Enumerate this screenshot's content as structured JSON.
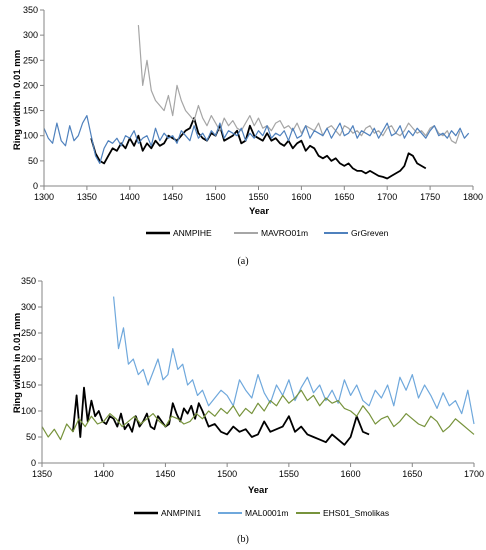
{
  "chart_data": [
    {
      "type": "line",
      "caption": "(a)",
      "xlabel": "Year",
      "ylabel": "Ring width in 0.01 mm",
      "xlim": [
        1300,
        1800
      ],
      "ylim": [
        0,
        350
      ],
      "x_ticks": [
        "1300",
        "1350",
        "1400",
        "1450",
        "1500",
        "1550",
        "1600",
        "1650",
        "1700",
        "1750",
        "1800"
      ],
      "y_ticks": [
        "0",
        "50",
        "100",
        "150",
        "200",
        "250",
        "300",
        "350"
      ],
      "grid": false,
      "legend": "bottom",
      "series": [
        {
          "name": "ANMPIHE",
          "color": "#000000",
          "x": [
            1355,
            1360,
            1365,
            1370,
            1375,
            1380,
            1385,
            1390,
            1395,
            1400,
            1405,
            1410,
            1415,
            1420,
            1425,
            1430,
            1435,
            1440,
            1445,
            1450,
            1455,
            1460,
            1465,
            1470,
            1475,
            1480,
            1485,
            1490,
            1495,
            1500,
            1505,
            1510,
            1515,
            1520,
            1525,
            1530,
            1535,
            1540,
            1545,
            1550,
            1555,
            1560,
            1565,
            1570,
            1575,
            1580,
            1585,
            1590,
            1595,
            1600,
            1605,
            1610,
            1615,
            1620,
            1625,
            1630,
            1635,
            1640,
            1645,
            1650,
            1655,
            1660,
            1665,
            1670,
            1675,
            1680,
            1685,
            1690,
            1695,
            1700,
            1705,
            1710,
            1715,
            1720,
            1725,
            1730,
            1735,
            1740,
            1745
          ],
          "y": [
            95,
            65,
            50,
            45,
            60,
            75,
            70,
            85,
            75,
            95,
            80,
            100,
            70,
            85,
            75,
            90,
            80,
            85,
            100,
            95,
            90,
            100,
            110,
            115,
            135,
            105,
            95,
            90,
            105,
            100,
            120,
            90,
            95,
            100,
            110,
            85,
            90,
            120,
            100,
            95,
            90,
            105,
            90,
            95,
            85,
            80,
            90,
            75,
            85,
            90,
            70,
            80,
            75,
            60,
            55,
            60,
            50,
            55,
            45,
            40,
            45,
            35,
            30,
            30,
            25,
            30,
            25,
            20,
            18,
            15,
            20,
            25,
            30,
            40,
            65,
            60,
            45,
            40,
            35
          ]
        },
        {
          "name": "MAVRO01m",
          "color": "#a6a6a6",
          "x": [
            1410,
            1415,
            1420,
            1425,
            1430,
            1435,
            1440,
            1445,
            1450,
            1455,
            1460,
            1465,
            1470,
            1475,
            1480,
            1485,
            1490,
            1495,
            1500,
            1505,
            1510,
            1515,
            1520,
            1525,
            1530,
            1535,
            1540,
            1545,
            1550,
            1555,
            1560,
            1565,
            1570,
            1575,
            1580,
            1585,
            1590,
            1595,
            1600,
            1605,
            1610,
            1615,
            1620,
            1625,
            1630,
            1635,
            1640,
            1645,
            1650,
            1655,
            1660,
            1665,
            1670,
            1675,
            1680,
            1685,
            1690,
            1695,
            1700,
            1705,
            1710,
            1715,
            1720,
            1725,
            1730,
            1735,
            1740,
            1745,
            1750,
            1755,
            1760,
            1765,
            1770,
            1775,
            1780,
            1785
          ],
          "y": [
            320,
            200,
            250,
            190,
            170,
            160,
            150,
            180,
            140,
            200,
            170,
            150,
            140,
            130,
            160,
            135,
            120,
            140,
            125,
            110,
            135,
            120,
            130,
            115,
            110,
            125,
            140,
            120,
            135,
            115,
            120,
            110,
            125,
            130,
            115,
            120,
            110,
            125,
            105,
            120,
            115,
            110,
            125,
            100,
            115,
            120,
            110,
            100,
            120,
            115,
            105,
            110,
            100,
            115,
            120,
            105,
            110,
            100,
            115,
            120,
            105,
            100,
            110,
            125,
            115,
            105,
            110,
            100,
            115,
            120,
            105,
            100,
            110,
            90,
            85,
            110
          ]
        },
        {
          "name": "GrGreven",
          "color": "#4f81bd",
          "x": [
            1300,
            1305,
            1310,
            1315,
            1320,
            1325,
            1330,
            1335,
            1340,
            1345,
            1350,
            1355,
            1360,
            1365,
            1370,
            1375,
            1380,
            1385,
            1390,
            1395,
            1400,
            1405,
            1410,
            1415,
            1420,
            1425,
            1430,
            1435,
            1440,
            1445,
            1450,
            1455,
            1460,
            1465,
            1470,
            1475,
            1480,
            1485,
            1490,
            1495,
            1500,
            1505,
            1510,
            1515,
            1520,
            1525,
            1530,
            1535,
            1540,
            1545,
            1550,
            1555,
            1560,
            1565,
            1570,
            1575,
            1580,
            1585,
            1590,
            1595,
            1600,
            1605,
            1610,
            1615,
            1620,
            1625,
            1630,
            1635,
            1640,
            1645,
            1650,
            1655,
            1660,
            1665,
            1670,
            1675,
            1680,
            1685,
            1690,
            1695,
            1700,
            1705,
            1710,
            1715,
            1720,
            1725,
            1730,
            1735,
            1740,
            1745,
            1750,
            1755,
            1760,
            1765,
            1770,
            1775,
            1780,
            1785,
            1790,
            1795
          ],
          "y": [
            115,
            95,
            85,
            125,
            90,
            80,
            120,
            90,
            100,
            125,
            140,
            100,
            60,
            45,
            75,
            90,
            85,
            95,
            80,
            100,
            95,
            110,
            85,
            95,
            100,
            80,
            115,
            90,
            105,
            95,
            100,
            85,
            110,
            100,
            90,
            120,
            95,
            105,
            90,
            110,
            100,
            125,
            95,
            110,
            105,
            100,
            115,
            90,
            105,
            95,
            110,
            100,
            120,
            95,
            105,
            100,
            110,
            90,
            115,
            95,
            100,
            120,
            95,
            110,
            105,
            100,
            115,
            95,
            110,
            125,
            100,
            105,
            120,
            95,
            110,
            105,
            100,
            115,
            95,
            110,
            125,
            100,
            105,
            120,
            95,
            110,
            100,
            115,
            105,
            95,
            110,
            120,
            100,
            105,
            95,
            110,
            100,
            115,
            95,
            105
          ]
        }
      ]
    },
    {
      "type": "line",
      "caption": "(b)",
      "xlabel": "Year",
      "ylabel": "Ring width in 0.01 mm",
      "xlim": [
        1350,
        1700
      ],
      "ylim": [
        0,
        350
      ],
      "x_ticks": [
        "1350",
        "1400",
        "1450",
        "1500",
        "1550",
        "1600",
        "1650",
        "1700"
      ],
      "y_ticks": [
        "0",
        "50",
        "100",
        "150",
        "200",
        "250",
        "300",
        "350"
      ],
      "grid": false,
      "legend": "bottom",
      "series": [
        {
          "name": "ANMPINI1",
          "color": "#000000",
          "x": [
            1375,
            1378,
            1381,
            1384,
            1387,
            1390,
            1393,
            1396,
            1399,
            1402,
            1405,
            1408,
            1411,
            1414,
            1417,
            1420,
            1423,
            1426,
            1429,
            1432,
            1435,
            1438,
            1441,
            1444,
            1447,
            1450,
            1453,
            1456,
            1459,
            1462,
            1465,
            1468,
            1471,
            1474,
            1477,
            1480,
            1485,
            1490,
            1495,
            1500,
            1505,
            1510,
            1515,
            1520,
            1525,
            1530,
            1535,
            1540,
            1545,
            1550,
            1555,
            1560,
            1565,
            1570,
            1575,
            1580,
            1585,
            1590,
            1595,
            1600,
            1605,
            1610,
            1615
          ],
          "y": [
            60,
            130,
            50,
            145,
            80,
            120,
            90,
            100,
            80,
            75,
            90,
            85,
            70,
            95,
            65,
            75,
            60,
            90,
            70,
            80,
            95,
            70,
            65,
            90,
            80,
            70,
            75,
            115,
            95,
            80,
            105,
            95,
            110,
            85,
            115,
            100,
            70,
            75,
            60,
            55,
            70,
            60,
            65,
            50,
            55,
            80,
            60,
            65,
            70,
            90,
            60,
            70,
            55,
            50,
            45,
            40,
            55,
            45,
            35,
            50,
            90,
            60,
            55
          ]
        },
        {
          "name": "MAL0001m",
          "color": "#6fa8dc",
          "x": [
            1408,
            1412,
            1416,
            1420,
            1424,
            1428,
            1432,
            1436,
            1440,
            1444,
            1448,
            1452,
            1456,
            1460,
            1464,
            1468,
            1472,
            1476,
            1480,
            1485,
            1490,
            1495,
            1500,
            1505,
            1510,
            1515,
            1520,
            1525,
            1530,
            1535,
            1540,
            1545,
            1550,
            1555,
            1560,
            1565,
            1570,
            1575,
            1580,
            1585,
            1590,
            1595,
            1600,
            1605,
            1610,
            1615,
            1620,
            1625,
            1630,
            1635,
            1640,
            1645,
            1650,
            1655,
            1660,
            1665,
            1670,
            1675,
            1680,
            1685,
            1690,
            1695,
            1700
          ],
          "y": [
            320,
            220,
            260,
            190,
            200,
            170,
            180,
            150,
            175,
            200,
            160,
            170,
            220,
            180,
            190,
            150,
            160,
            130,
            140,
            110,
            125,
            140,
            130,
            110,
            160,
            140,
            125,
            170,
            135,
            115,
            150,
            130,
            160,
            120,
            145,
            165,
            135,
            150,
            120,
            140,
            115,
            160,
            130,
            150,
            120,
            110,
            140,
            125,
            150,
            110,
            165,
            140,
            170,
            125,
            150,
            130,
            105,
            135,
            110,
            120,
            95,
            140,
            75
          ]
        },
        {
          "name": "EHS01_Smolikas",
          "color": "#77933c",
          "x": [
            1350,
            1355,
            1360,
            1365,
            1370,
            1375,
            1380,
            1385,
            1390,
            1395,
            1400,
            1405,
            1410,
            1415,
            1420,
            1425,
            1430,
            1435,
            1440,
            1445,
            1450,
            1455,
            1460,
            1465,
            1470,
            1475,
            1480,
            1485,
            1490,
            1495,
            1500,
            1505,
            1510,
            1515,
            1520,
            1525,
            1530,
            1535,
            1540,
            1545,
            1550,
            1555,
            1560,
            1565,
            1570,
            1575,
            1580,
            1585,
            1590,
            1595,
            1600,
            1605,
            1610,
            1615,
            1620,
            1625,
            1630,
            1635,
            1640,
            1645,
            1650,
            1655,
            1660,
            1665,
            1670,
            1675,
            1680,
            1685,
            1690,
            1695,
            1700
          ],
          "y": [
            70,
            50,
            65,
            45,
            75,
            60,
            85,
            70,
            90,
            75,
            80,
            95,
            85,
            70,
            80,
            90,
            75,
            85,
            95,
            80,
            70,
            90,
            85,
            75,
            80,
            95,
            85,
            100,
            90,
            105,
            95,
            110,
            90,
            105,
            95,
            115,
            100,
            120,
            110,
            130,
            115,
            125,
            140,
            120,
            130,
            110,
            125,
            115,
            120,
            105,
            100,
            90,
            110,
            95,
            75,
            85,
            90,
            70,
            80,
            95,
            85,
            75,
            70,
            90,
            80,
            60,
            70,
            85,
            75,
            65,
            55
          ]
        }
      ]
    }
  ]
}
